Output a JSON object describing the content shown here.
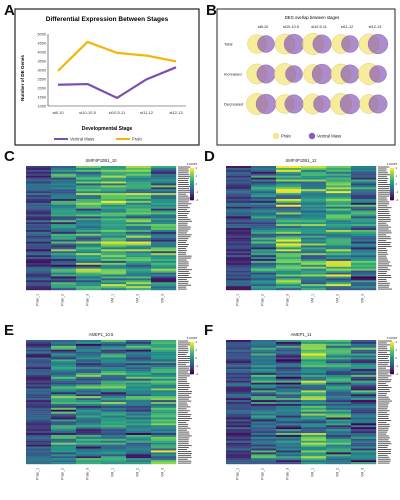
{
  "panel_labels": [
    "A",
    "B",
    "C",
    "D",
    "E",
    "F"
  ],
  "chart_data": [
    {
      "panel": "A",
      "type": "line",
      "title": "Differential Expression Between Stages",
      "xlabel": "Developmental Stage",
      "ylabel": "Number of DE Genes",
      "categories": [
        "st8-10",
        "st10-10.5",
        "st10.5-11",
        "st11-12",
        "st12-13"
      ],
      "ylim": [
        1000,
        5000
      ],
      "yticks": [
        "1000",
        "1500",
        "2000",
        "2500",
        "3000",
        "3500",
        "4000",
        "4500",
        "5000"
      ],
      "series": [
        {
          "name": "Ventral Mass",
          "color": "#7b4fb0",
          "values": [
            2180,
            2220,
            1450,
            2480,
            3150
          ]
        },
        {
          "name": "Pralo",
          "color": "#f2b705",
          "values": [
            2950,
            4560,
            3950,
            3800,
            3480
          ]
        }
      ],
      "legend_position": "bottom"
    },
    {
      "panel": "B",
      "type": "venn",
      "title": "DEG overlap between stages",
      "rows": [
        "Total",
        "Increased",
        "Decreased"
      ],
      "columns": [
        "st8-10",
        "st10-10.5",
        "st10.5-11",
        "st11-12",
        "st12-13"
      ],
      "legend": [
        {
          "name": "Pralo",
          "color": "#f4e98a"
        },
        {
          "name": "Ventral Mass",
          "color": "#8a5bb8"
        }
      ]
    },
    {
      "panel": "C",
      "type": "heatmap",
      "title": "SMP4P10B1_10",
      "scale_label": "z-score",
      "colorbar_ticks": [
        "2",
        "1",
        "0",
        "-1",
        "-2"
      ],
      "rows": 64,
      "columns": [
        "Pralo_1",
        "Pralo_2",
        "Pralo_3",
        "VM_1",
        "VM_2",
        "VM_3"
      ],
      "seed": 3
    },
    {
      "panel": "D",
      "type": "heatmap",
      "title": "SMP4P10B1_12",
      "scale_label": "z-score",
      "colorbar_ticks": [
        "2",
        "1",
        "0",
        "-1",
        "-2"
      ],
      "rows": 64,
      "columns": [
        "Pralo_1",
        "Pralo_2",
        "Pralo_3",
        "VM_1",
        "VM_2",
        "VM_3"
      ],
      "seed": 7
    },
    {
      "panel": "E",
      "type": "heatmap",
      "title": "AMEP1_10.5",
      "scale_label": "z-score",
      "colorbar_ticks": [
        "2",
        "1",
        "0",
        "-1",
        "-2"
      ],
      "rows": 64,
      "columns": [
        "Pralo_1",
        "Pralo_2",
        "Pralo_3",
        "VM_1",
        "VM_2",
        "VM_3"
      ],
      "seed": 11
    },
    {
      "panel": "F",
      "type": "heatmap",
      "title": "AMEP1_11",
      "scale_label": "z-score",
      "colorbar_ticks": [
        "2",
        "1",
        "0",
        "-1",
        "-2"
      ],
      "rows": 64,
      "columns": [
        "Pralo_1",
        "Pralo_2",
        "Pralo_3",
        "VM_1",
        "VM_2",
        "VM_3"
      ],
      "seed": 19
    }
  ]
}
